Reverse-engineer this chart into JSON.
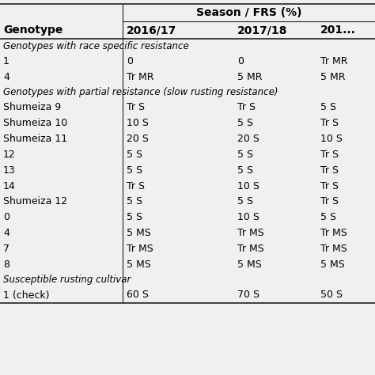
{
  "title": "",
  "col_header_top": "Season / FRS (%)",
  "col_headers": [
    "Genotype",
    "2016/17",
    "2017/18",
    "201..."
  ],
  "section1_label": "Genotypes with race specific resistance",
  "section2_label": "Genotypes with partial resistance (slow rusting resistance)",
  "section3_label": "Susceptible rusting cultivar",
  "rows": [
    {
      "name": "1",
      "s1": "0",
      "s2": "0",
      "s3": "Tr MR"
    },
    {
      "name": "4",
      "s1": "Tr MR",
      "s2": "5 MR",
      "s3": "5 MR"
    },
    {
      "name": "Shumeiza 9",
      "s1": "Tr S",
      "s2": "Tr S",
      "s3": "5 S"
    },
    {
      "name": "Shumeiza 10",
      "s1": "10 S",
      "s2": "5 S",
      "s3": "Tr S"
    },
    {
      "name": "Shumeiza 11",
      "s1": "20 S",
      "s2": "20 S",
      "s3": "10 S"
    },
    {
      "name": "12",
      "s1": "5 S",
      "s2": "5 S",
      "s3": "Tr S"
    },
    {
      "name": "13",
      "s1": "5 S",
      "s2": "5 S",
      "s3": "Tr S"
    },
    {
      "name": "14",
      "s1": "Tr S",
      "s2": "10 S",
      "s3": "Tr S"
    },
    {
      "name": "Shumeiza 12",
      "s1": "5 S",
      "s2": "5 S",
      "s3": "Tr S"
    },
    {
      "name": "0",
      "s1": "5 S",
      "s2": "10 S",
      "s3": "5 S"
    },
    {
      "name": "4",
      "s1": "5 MS",
      "s2": "Tr MS",
      "s3": "Tr MS"
    },
    {
      "name": "7",
      "s1": "Tr MS",
      "s2": "Tr MS",
      "s3": "Tr MS"
    },
    {
      "name": "8",
      "s1": "5 MS",
      "s2": "5 MS",
      "s3": "5 MS"
    },
    {
      "name": "1 (check)",
      "s1": "60 S",
      "s2": "70 S",
      "s3": "50 S"
    }
  ],
  "section_breaks": [
    0,
    2,
    13
  ],
  "bg_color": "#f0f0f0",
  "header_color": "#ffffff",
  "font_size": 9,
  "bold_font_size": 10
}
